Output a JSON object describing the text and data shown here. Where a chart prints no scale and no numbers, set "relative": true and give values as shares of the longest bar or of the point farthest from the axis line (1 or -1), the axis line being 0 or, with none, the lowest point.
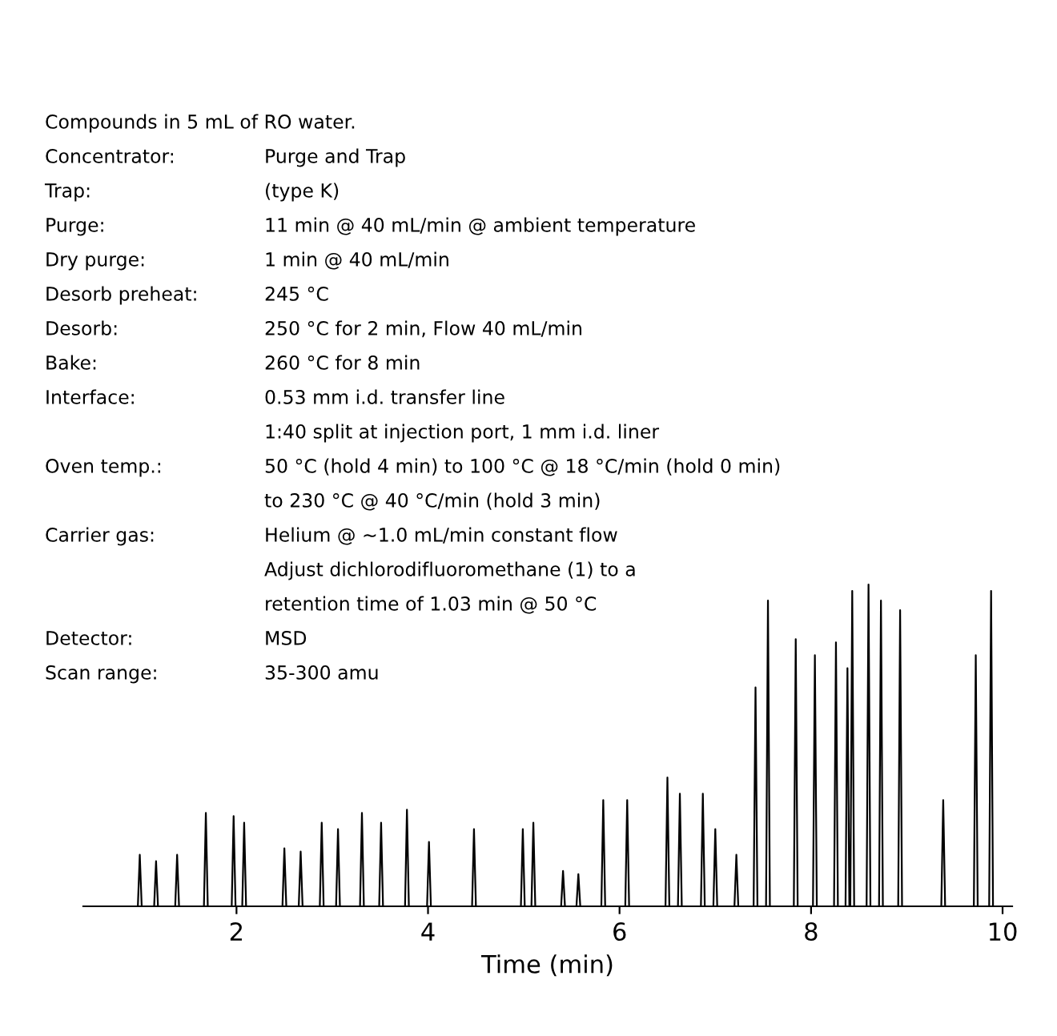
{
  "chart_data": {
    "type": "line",
    "relative": true,
    "xlabel": "Time (min)",
    "xlim": [
      0.4,
      10.1
    ],
    "xticks": [
      2,
      4,
      6,
      8,
      10
    ],
    "grid": false,
    "legend": false,
    "marker": "none",
    "line_style": "solid",
    "annotations": [
      "Compounds in 5 mL of RO water.",
      "Concentrator: Purge and Trap",
      "Trap: (type K)",
      "Purge: 11 min @ 40 mL/min @ ambient temperature",
      "Dry purge: 1 min @ 40 mL/min",
      "Desorb preheat: 245 °C",
      "Desorb: 250 °C for 2 min, Flow 40 mL/min",
      "Bake: 260 °C for 8 min",
      "Interface: 0.53 mm i.d. transfer line",
      "1:40 split at injection port, 1 mm i.d. liner",
      "Oven temp.: 50 °C (hold 4 min) to 100 °C @ 18 °C/min (hold 0 min)",
      "to 230 °C @ 40 °C/min (hold 3 min)",
      "Carrier gas: Helium @ ~1.0 mL/min constant flow",
      "Adjust dichlorodifluoromethane (1) to a",
      "retention time of 1.03 min @ 50 °C",
      "Detector: MSD",
      "Scan range: 35-300 amu"
    ],
    "series": [
      {
        "color": "#000000",
        "x": [
          0.5,
          0.97,
          0.99,
          1.01,
          1.14,
          1.16,
          1.18,
          1.36,
          1.38,
          1.4,
          1.66,
          1.68,
          1.7,
          1.95,
          1.97,
          1.99,
          2.06,
          2.08,
          2.1,
          2.48,
          2.5,
          2.52,
          2.65,
          2.67,
          2.69,
          2.87,
          2.89,
          2.91,
          3.04,
          3.06,
          3.08,
          3.29,
          3.31,
          3.33,
          3.49,
          3.51,
          3.53,
          3.76,
          3.78,
          3.8,
          3.99,
          4.01,
          4.03,
          4.46,
          4.48,
          4.5,
          4.97,
          4.99,
          5.01,
          5.08,
          5.1,
          5.12,
          5.39,
          5.41,
          5.43,
          5.55,
          5.57,
          5.59,
          5.81,
          5.83,
          5.85,
          6.06,
          6.08,
          6.1,
          6.48,
          6.5,
          6.52,
          6.61,
          6.63,
          6.65,
          6.85,
          6.87,
          6.89,
          6.98,
          7.0,
          7.02,
          7.2,
          7.22,
          7.24,
          7.4,
          7.42,
          7.44,
          7.53,
          7.55,
          7.57,
          7.82,
          7.84,
          7.86,
          8.02,
          8.04,
          8.06,
          8.24,
          8.26,
          8.28,
          8.36,
          8.38,
          8.4,
          8.41,
          8.43,
          8.45,
          8.58,
          8.6,
          8.62,
          8.71,
          8.73,
          8.75,
          8.91,
          8.93,
          8.95,
          9.36,
          9.38,
          9.4,
          9.7,
          9.72,
          9.74,
          9.86,
          9.88,
          9.9,
          10.05
        ],
        "values": [
          0,
          0,
          0.16,
          0,
          0,
          0.14,
          0,
          0,
          0.16,
          0,
          0,
          0.29,
          0,
          0,
          0.28,
          0,
          0,
          0.26,
          0,
          0,
          0.18,
          0,
          0,
          0.17,
          0,
          0,
          0.26,
          0,
          0,
          0.24,
          0,
          0,
          0.29,
          0,
          0,
          0.26,
          0,
          0,
          0.3,
          0,
          0,
          0.2,
          0,
          0,
          0.24,
          0,
          0,
          0.24,
          0,
          0,
          0.26,
          0,
          0,
          0.11,
          0,
          0,
          0.1,
          0,
          0,
          0.33,
          0,
          0,
          0.33,
          0,
          0,
          0.4,
          0,
          0,
          0.35,
          0,
          0,
          0.35,
          0,
          0,
          0.24,
          0,
          0,
          0.16,
          0,
          0,
          0.68,
          0,
          0,
          0.95,
          0,
          0,
          0.83,
          0,
          0,
          0.78,
          0,
          0,
          0.82,
          0,
          0,
          0.74,
          0,
          0,
          0.98,
          0,
          0,
          1.0,
          0,
          0,
          0.95,
          0,
          0,
          0.92,
          0,
          0,
          0.33,
          0,
          0,
          0.78,
          0,
          0,
          0.98,
          0,
          0
        ]
      }
    ]
  }
}
